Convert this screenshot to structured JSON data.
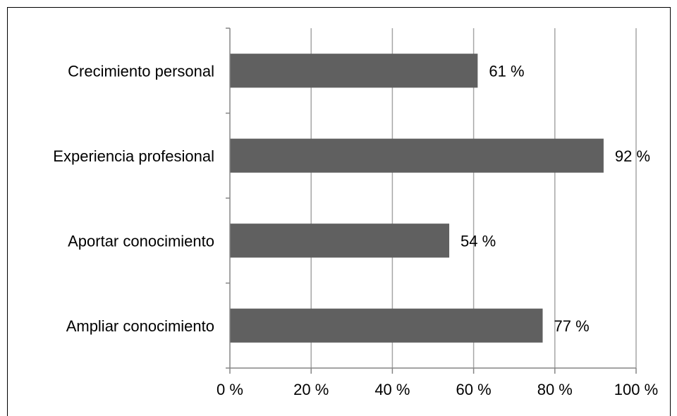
{
  "chart_data": {
    "type": "bar",
    "orientation": "horizontal",
    "categories": [
      "Crecimiento personal",
      "Experiencia profesional",
      "Aportar conocimiento",
      "Ampliar conocimiento"
    ],
    "values": [
      61,
      92,
      54,
      77
    ],
    "data_labels": [
      "61 %",
      "92 %",
      "54 %",
      "77 %"
    ],
    "title": "",
    "xlabel": "",
    "ylabel": "",
    "xlim": [
      0,
      100
    ],
    "x_ticks": [
      0,
      20,
      40,
      60,
      80,
      100
    ],
    "x_tick_labels": [
      "0 %",
      "20 %",
      "40 %",
      "60 %",
      "80 %",
      "100 %"
    ],
    "grid": "vertical",
    "legend": "none",
    "colors": {
      "bar": "#606060",
      "grid": "#a6a6a6",
      "axis": "#868686",
      "text": "#000000"
    }
  }
}
